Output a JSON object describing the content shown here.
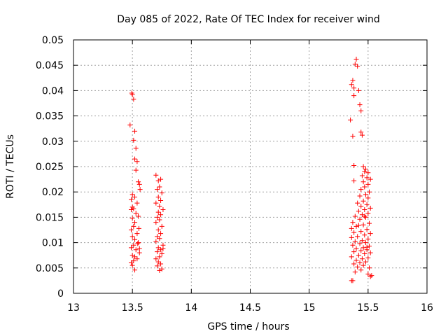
{
  "chart_data": {
    "type": "scatter",
    "title": "Day 085 of 2022, Rate Of TEC Index for receiver wind",
    "xlabel": "GPS time / hours",
    "ylabel": "ROTI / TECUs",
    "xlim": [
      13,
      16
    ],
    "ylim": [
      0,
      0.05
    ],
    "grid": true,
    "marker": "+",
    "color": "#ff0000",
    "x_ticks": [
      "13",
      "13.5",
      "14",
      "14.5",
      "15",
      "15.5",
      "16"
    ],
    "y_ticks": [
      "0",
      "0.005",
      "0.01",
      "0.015",
      "0.02",
      "0.025",
      "0.03",
      "0.035",
      "0.04",
      "0.045",
      "0.05"
    ],
    "series": [
      {
        "name": "ROTI",
        "points": [
          [
            13.495,
            0.0395
          ],
          [
            13.5,
            0.0392
          ],
          [
            13.51,
            0.0383
          ],
          [
            13.48,
            0.0332
          ],
          [
            13.52,
            0.032
          ],
          [
            13.51,
            0.0302
          ],
          [
            13.53,
            0.0286
          ],
          [
            13.52,
            0.0265
          ],
          [
            13.54,
            0.026
          ],
          [
            13.53,
            0.0243
          ],
          [
            13.55,
            0.022
          ],
          [
            13.56,
            0.0215
          ],
          [
            13.5,
            0.0195
          ],
          [
            13.52,
            0.019
          ],
          [
            13.49,
            0.0185
          ],
          [
            13.54,
            0.0178
          ],
          [
            13.5,
            0.017
          ],
          [
            13.51,
            0.0167
          ],
          [
            13.49,
            0.0165
          ],
          [
            13.53,
            0.0158
          ],
          [
            13.55,
            0.0152
          ],
          [
            13.5,
            0.0148
          ],
          [
            13.52,
            0.014
          ],
          [
            13.51,
            0.0132
          ],
          [
            13.49,
            0.0125
          ],
          [
            13.54,
            0.0118
          ],
          [
            13.5,
            0.0112
          ],
          [
            13.52,
            0.0106
          ],
          [
            13.55,
            0.01
          ],
          [
            13.51,
            0.0095
          ],
          [
            13.49,
            0.009
          ],
          [
            13.53,
            0.0086
          ],
          [
            13.56,
            0.008
          ],
          [
            13.5,
            0.0075
          ],
          [
            13.52,
            0.0072
          ],
          [
            13.54,
            0.0068
          ],
          [
            13.51,
            0.0064
          ],
          [
            13.49,
            0.006
          ],
          [
            13.5,
            0.0055
          ],
          [
            13.52,
            0.0046
          ],
          [
            13.565,
            0.0205
          ],
          [
            13.555,
            0.0128
          ],
          [
            13.545,
            0.0098
          ],
          [
            13.56,
            0.0088
          ],
          [
            13.7,
            0.0233
          ],
          [
            13.72,
            0.0222
          ],
          [
            13.74,
            0.0225
          ],
          [
            13.73,
            0.021
          ],
          [
            13.71,
            0.0205
          ],
          [
            13.75,
            0.0198
          ],
          [
            13.72,
            0.019
          ],
          [
            13.74,
            0.0183
          ],
          [
            13.7,
            0.0178
          ],
          [
            13.73,
            0.0172
          ],
          [
            13.76,
            0.0165
          ],
          [
            13.72,
            0.016
          ],
          [
            13.74,
            0.0155
          ],
          [
            13.71,
            0.015
          ],
          [
            13.73,
            0.0145
          ],
          [
            13.7,
            0.014
          ],
          [
            13.75,
            0.0132
          ],
          [
            13.72,
            0.0125
          ],
          [
            13.74,
            0.0118
          ],
          [
            13.71,
            0.0112
          ],
          [
            13.73,
            0.0108
          ],
          [
            13.7,
            0.0102
          ],
          [
            13.76,
            0.0095
          ],
          [
            13.72,
            0.009
          ],
          [
            13.74,
            0.0086
          ],
          [
            13.71,
            0.0082
          ],
          [
            13.75,
            0.0078
          ],
          [
            13.73,
            0.0072
          ],
          [
            13.7,
            0.0068
          ],
          [
            13.72,
            0.0062
          ],
          [
            13.74,
            0.0058
          ],
          [
            13.71,
            0.0054
          ],
          [
            13.75,
            0.0048
          ],
          [
            13.73,
            0.0045
          ],
          [
            13.76,
            0.0088
          ],
          [
            15.4,
            0.0462
          ],
          [
            15.39,
            0.0452
          ],
          [
            15.41,
            0.0448
          ],
          [
            15.37,
            0.042
          ],
          [
            15.36,
            0.0412
          ],
          [
            15.38,
            0.0405
          ],
          [
            15.42,
            0.04
          ],
          [
            15.38,
            0.039
          ],
          [
            15.43,
            0.0372
          ],
          [
            15.44,
            0.036
          ],
          [
            15.35,
            0.0342
          ],
          [
            15.44,
            0.0318
          ],
          [
            15.45,
            0.0312
          ],
          [
            15.37,
            0.031
          ],
          [
            15.38,
            0.0252
          ],
          [
            15.46,
            0.025
          ],
          [
            15.48,
            0.0245
          ],
          [
            15.47,
            0.024
          ],
          [
            15.5,
            0.0238
          ],
          [
            15.45,
            0.0232
          ],
          [
            15.49,
            0.0228
          ],
          [
            15.52,
            0.0225
          ],
          [
            15.46,
            0.022
          ],
          [
            15.38,
            0.0222
          ],
          [
            15.5,
            0.0215
          ],
          [
            15.47,
            0.021
          ],
          [
            15.44,
            0.0205
          ],
          [
            15.51,
            0.02
          ],
          [
            15.48,
            0.0195
          ],
          [
            15.43,
            0.0192
          ],
          [
            15.5,
            0.0188
          ],
          [
            15.46,
            0.0182
          ],
          [
            15.41,
            0.0178
          ],
          [
            15.49,
            0.0175
          ],
          [
            15.44,
            0.0172
          ],
          [
            15.52,
            0.0168
          ],
          [
            15.47,
            0.0165
          ],
          [
            15.42,
            0.0162
          ],
          [
            15.5,
            0.0158
          ],
          [
            15.45,
            0.0155
          ],
          [
            15.39,
            0.0152
          ],
          [
            15.48,
            0.015
          ],
          [
            15.43,
            0.0146
          ],
          [
            15.37,
            0.014
          ],
          [
            15.51,
            0.0138
          ],
          [
            15.46,
            0.0135
          ],
          [
            15.4,
            0.0132
          ],
          [
            15.36,
            0.0128
          ],
          [
            15.49,
            0.0126
          ],
          [
            15.44,
            0.0122
          ],
          [
            15.38,
            0.012
          ],
          [
            15.52,
            0.0118
          ],
          [
            15.47,
            0.0115
          ],
          [
            15.41,
            0.0112
          ],
          [
            15.36,
            0.011
          ],
          [
            15.5,
            0.0107
          ],
          [
            15.45,
            0.0104
          ],
          [
            15.39,
            0.0102
          ],
          [
            15.48,
            0.01
          ],
          [
            15.43,
            0.0098
          ],
          [
            15.37,
            0.0095
          ],
          [
            15.51,
            0.0093
          ],
          [
            15.46,
            0.009
          ],
          [
            15.4,
            0.0088
          ],
          [
            15.49,
            0.0086
          ],
          [
            15.44,
            0.0084
          ],
          [
            15.38,
            0.0082
          ],
          [
            15.52,
            0.008
          ],
          [
            15.47,
            0.0078
          ],
          [
            15.42,
            0.0075
          ],
          [
            15.36,
            0.0072
          ],
          [
            15.5,
            0.007
          ],
          [
            15.45,
            0.0068
          ],
          [
            15.4,
            0.0065
          ],
          [
            15.48,
            0.0062
          ],
          [
            15.43,
            0.006
          ],
          [
            15.38,
            0.0058
          ],
          [
            15.46,
            0.0055
          ],
          [
            15.41,
            0.0052
          ],
          [
            15.51,
            0.005
          ],
          [
            15.44,
            0.0046
          ],
          [
            15.39,
            0.0042
          ],
          [
            15.5,
            0.0038
          ],
          [
            15.53,
            0.0035
          ],
          [
            15.52,
            0.0033
          ],
          [
            15.37,
            0.0025
          ],
          [
            15.36,
            0.0025
          ],
          [
            15.49,
            0.0091
          ],
          [
            15.42,
            0.0134
          ],
          [
            15.47,
            0.0152
          ]
        ]
      }
    ]
  }
}
